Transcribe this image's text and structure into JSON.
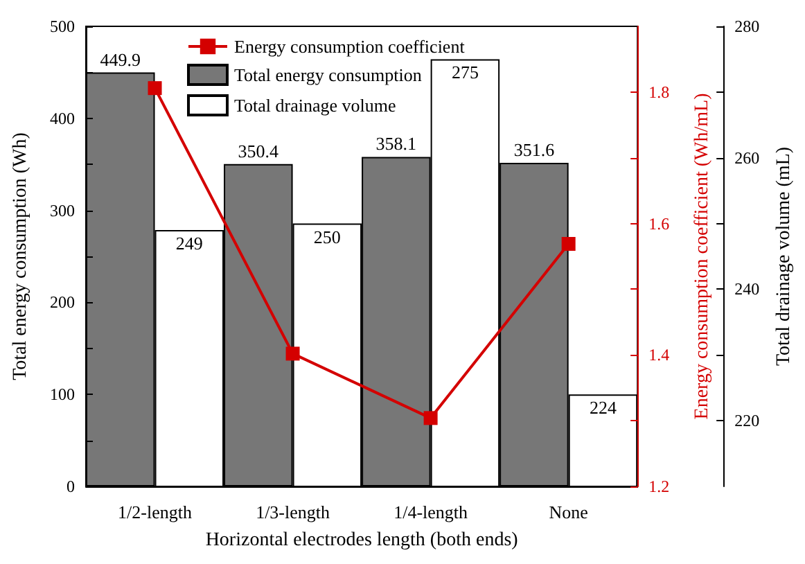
{
  "chart_data": {
    "type": "bar",
    "categories": [
      "1/2-length",
      "1/3-length",
      "1/4-length",
      "None"
    ],
    "xlabel": "Horizontal electrodes length (both ends)",
    "ylabel": "Total energy consumption (Wh)",
    "y2label": "Energy consumption coefficient (Wh/mL)",
    "y3label": "Total drainage volume (mL)",
    "series": [
      {
        "name": "Energy consumption coefficient",
        "type": "line",
        "axis": "y2",
        "color": "#d40000",
        "values": [
          1.806,
          1.402,
          1.304,
          1.569
        ],
        "marker": "square",
        "line_style": "solid"
      },
      {
        "name": "Total energy consumption",
        "color": "#777777",
        "values": [
          449.9,
          350.4,
          358.1,
          351.6
        ],
        "value_labels": [
          "449.9",
          "350.4",
          "358.1",
          "351.6"
        ]
      },
      {
        "name": "Total drainage volume",
        "axis": "y3",
        "color": "#ffffff",
        "values": [
          249,
          250,
          275,
          224
        ],
        "value_labels": [
          "249",
          "250",
          "275",
          "224"
        ]
      }
    ],
    "ylim": [
      0,
      500
    ],
    "yticks": [
      0,
      {
        "value": 50,
        "label": null
      },
      100,
      {
        "value": 150,
        "label": null
      },
      200,
      {
        "value": 250,
        "label": null
      },
      300,
      {
        "value": 350,
        "label": null
      },
      400,
      {
        "value": 450,
        "label": null
      },
      500
    ],
    "y2lim": [
      1.2,
      1.9
    ],
    "y2ticks": [
      1.2,
      {
        "value": 1.3,
        "label": null
      },
      1.4,
      {
        "value": 1.5,
        "label": null
      },
      1.6,
      {
        "value": 1.7,
        "label": null
      },
      1.8
    ],
    "y3lim": [
      210,
      280
    ],
    "y3ticks": [
      220,
      {
        "value": 230,
        "label": null
      },
      240,
      {
        "value": 250,
        "label": null
      },
      260,
      {
        "value": 270,
        "label": null
      },
      280
    ],
    "legend": "top",
    "grid": false
  }
}
